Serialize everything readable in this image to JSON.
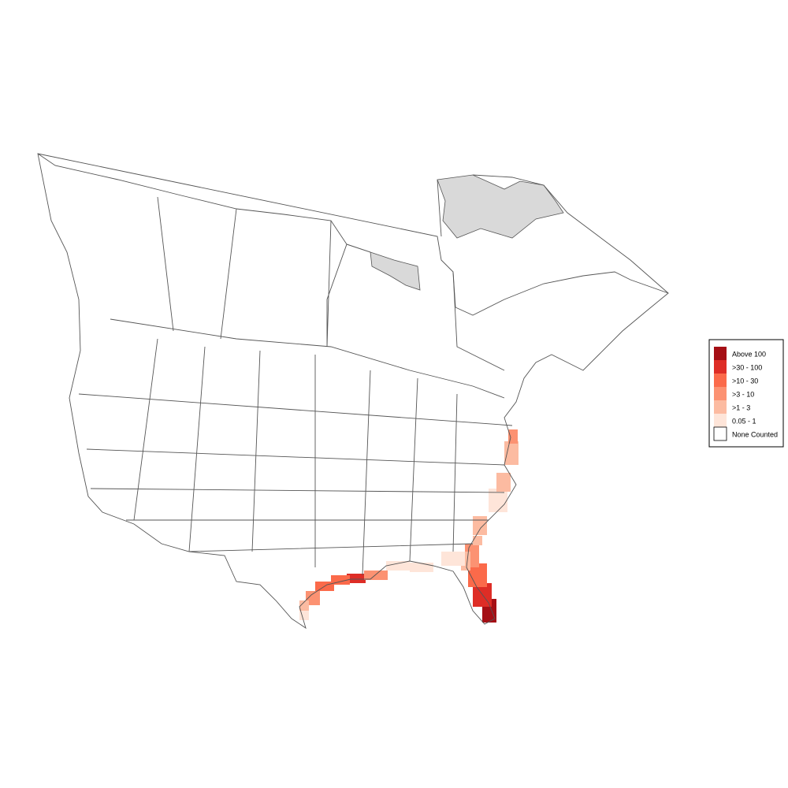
{
  "legend": {
    "items": [
      {
        "label": "Above 100",
        "color": "#a50f15"
      },
      {
        "label": ">30 - 100",
        "color": "#de2d26"
      },
      {
        "label": ">10 - 30",
        "color": "#fb6a4a"
      },
      {
        "label": ">3 - 10",
        "color": "#fc9272"
      },
      {
        "label": ">1 - 3",
        "color": "#fcbba1"
      },
      {
        "label": "0.05 - 1",
        "color": "#fee5d9"
      },
      {
        "label": "None Counted",
        "color": "#ffffff"
      }
    ]
  }
}
